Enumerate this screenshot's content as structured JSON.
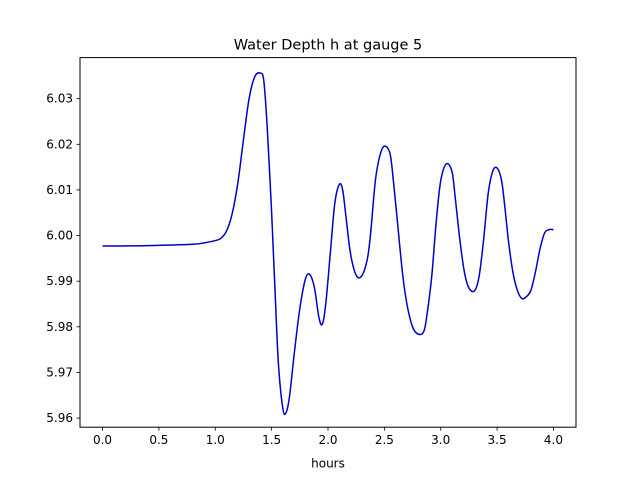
{
  "chart_data": {
    "type": "line",
    "title": "Water Depth h at gauge 5",
    "xlabel": "hours",
    "ylabel": "",
    "xlim": [
      -0.2,
      4.2
    ],
    "ylim": [
      5.958,
      6.039
    ],
    "xticks": [
      0.0,
      0.5,
      1.0,
      1.5,
      2.0,
      2.5,
      3.0,
      3.5,
      4.0
    ],
    "xtick_labels": [
      "0.0",
      "0.5",
      "1.0",
      "1.5",
      "2.0",
      "2.5",
      "3.0",
      "3.5",
      "4.0"
    ],
    "yticks": [
      5.96,
      5.97,
      5.98,
      5.99,
      6.0,
      6.01,
      6.02,
      6.03
    ],
    "ytick_labels": [
      "5.96",
      "5.97",
      "5.98",
      "5.99",
      "6.00",
      "6.01",
      "6.02",
      "6.03"
    ],
    "grid": false,
    "legend": false,
    "series": [
      {
        "color": "#0000cc",
        "x": [
          0.0,
          0.4,
          0.8,
          0.9,
          1.0,
          1.05,
          1.1,
          1.15,
          1.2,
          1.25,
          1.3,
          1.35,
          1.4,
          1.43,
          1.46,
          1.5,
          1.53,
          1.56,
          1.6,
          1.63,
          1.66,
          1.7,
          1.75,
          1.8,
          1.84,
          1.88,
          1.92,
          1.95,
          1.98,
          2.02,
          2.06,
          2.1,
          2.13,
          2.16,
          2.2,
          2.25,
          2.3,
          2.35,
          2.38,
          2.42,
          2.46,
          2.5,
          2.55,
          2.58,
          2.62,
          2.66,
          2.7,
          2.75,
          2.8,
          2.85,
          2.88,
          2.92,
          2.96,
          3.0,
          3.05,
          3.1,
          3.13,
          3.17,
          3.21,
          3.25,
          3.3,
          3.34,
          3.38,
          3.42,
          3.46,
          3.5,
          3.54,
          3.57,
          3.6,
          3.64,
          3.68,
          3.72,
          3.76,
          3.8,
          3.84,
          3.88,
          3.92,
          3.96,
          4.0
        ],
        "y": [
          5.9977,
          5.9978,
          5.9981,
          5.9984,
          5.9989,
          5.9994,
          6.001,
          6.0048,
          6.0115,
          6.021,
          6.03,
          6.0348,
          6.0356,
          6.034,
          6.024,
          6.005,
          5.988,
          5.972,
          5.962,
          5.9613,
          5.965,
          5.974,
          5.984,
          5.9905,
          5.9914,
          5.9885,
          5.982,
          5.9806,
          5.985,
          5.996,
          6.007,
          6.0112,
          6.01,
          6.004,
          5.996,
          5.9913,
          5.9912,
          5.995,
          6.001,
          6.012,
          6.0175,
          6.0196,
          6.018,
          6.012,
          6.002,
          5.992,
          5.985,
          5.98,
          5.9784,
          5.979,
          5.983,
          5.991,
          6.003,
          6.012,
          6.0157,
          6.014,
          6.008,
          5.999,
          5.992,
          5.9885,
          5.9879,
          5.991,
          5.999,
          6.009,
          6.014,
          6.0148,
          6.012,
          6.006,
          5.999,
          5.992,
          5.988,
          5.9862,
          5.9866,
          5.988,
          5.992,
          5.997,
          6.0005,
          6.0013,
          6.0013
        ]
      }
    ]
  }
}
